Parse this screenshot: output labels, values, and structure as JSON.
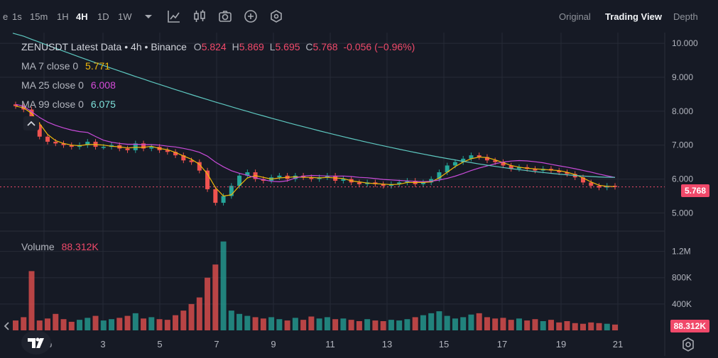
{
  "toolbar": {
    "timeframes": [
      {
        "label": "e"
      },
      {
        "label": "1s"
      },
      {
        "label": "15m"
      },
      {
        "label": "1H"
      },
      {
        "label": "4H",
        "active": true
      },
      {
        "label": "1D"
      },
      {
        "label": "1W"
      }
    ],
    "views": [
      {
        "label": "Original"
      },
      {
        "label": "Trading View",
        "active": true
      },
      {
        "label": "Depth"
      }
    ],
    "icons": [
      "chevron-down-icon",
      "indicator-icon",
      "candlestick-icon",
      "camera-icon",
      "add-icon",
      "settings-icon"
    ]
  },
  "legend": {
    "symbol": "ZENUSDT Latest Data",
    "interval": "4h",
    "exchange": "Binance",
    "o_label": "O",
    "o": "5.824",
    "h_label": "H",
    "h": "5.869",
    "l_label": "L",
    "l": "5.695",
    "c_label": "C",
    "c": "5.768",
    "change": "-0.056 (−0.96%)",
    "ma7_label": "MA 7 close 0",
    "ma7": "5.771",
    "ma25_label": "MA 25 close 0",
    "ma25": "6.008",
    "ma99_label": "MA 99 close 0",
    "ma99": "6.075",
    "volume_label": "Volume",
    "volume": "88.312K"
  },
  "price_axis": {
    "ticks": [
      "10.000",
      "9.000",
      "8.000",
      "7.000",
      "6.000",
      "5.000"
    ],
    "last_price": "5.768"
  },
  "volume_axis": {
    "ticks": [
      "1.2M",
      "800K",
      "400K"
    ],
    "last_volume": "88.312K"
  },
  "time_axis": {
    "labels": [
      "Feb",
      "3",
      "5",
      "7",
      "9",
      "11",
      "13",
      "15",
      "17",
      "19",
      "21"
    ]
  },
  "colors": {
    "up": "#26a69a",
    "down": "#ef5350",
    "ma7": "#f0b90b",
    "ma25": "#c84bd9",
    "ma99": "#5ec8c0",
    "bg": "#161a25",
    "grid": "#262b37"
  },
  "chart_data": {
    "type": "candlestick",
    "series_closes": [
      8.15,
      8.05,
      7.6,
      7.25,
      7.1,
      7.05,
      7.0,
      6.95,
      7.0,
      7.1,
      6.95,
      6.95,
      7.0,
      6.9,
      6.85,
      7.05,
      6.9,
      6.95,
      6.85,
      6.8,
      6.7,
      6.55,
      6.5,
      6.25,
      5.7,
      5.3,
      5.5,
      5.8,
      6.1,
      6.2,
      6.0,
      5.95,
      6.05,
      6.1,
      6.0,
      6.1,
      6.05,
      6.0,
      6.05,
      6.1,
      5.95,
      6.0,
      5.9,
      5.85,
      5.9,
      5.85,
      5.8,
      5.85,
      5.9,
      5.95,
      5.85,
      5.9,
      6.0,
      6.2,
      6.4,
      6.5,
      6.6,
      6.7,
      6.65,
      6.55,
      6.5,
      6.4,
      6.3,
      6.35,
      6.3,
      6.25,
      6.3,
      6.25,
      6.2,
      6.15,
      6.05,
      5.9,
      5.8,
      5.75,
      5.8,
      5.77
    ],
    "volumes_k": [
      150,
      200,
      900,
      150,
      180,
      250,
      170,
      130,
      160,
      190,
      220,
      150,
      170,
      190,
      220,
      260,
      180,
      200,
      170,
      160,
      230,
      300,
      400,
      500,
      800,
      1000,
      1350,
      300,
      250,
      220,
      200,
      180,
      200,
      170,
      150,
      190,
      160,
      210,
      180,
      200,
      170,
      180,
      160,
      140,
      170,
      150,
      140,
      160,
      150,
      170,
      200,
      230,
      260,
      290,
      220,
      180,
      200,
      240,
      260,
      200,
      180,
      190,
      160,
      180,
      150,
      170,
      140,
      160,
      120,
      140,
      110,
      100,
      120,
      110,
      100,
      88
    ]
  }
}
